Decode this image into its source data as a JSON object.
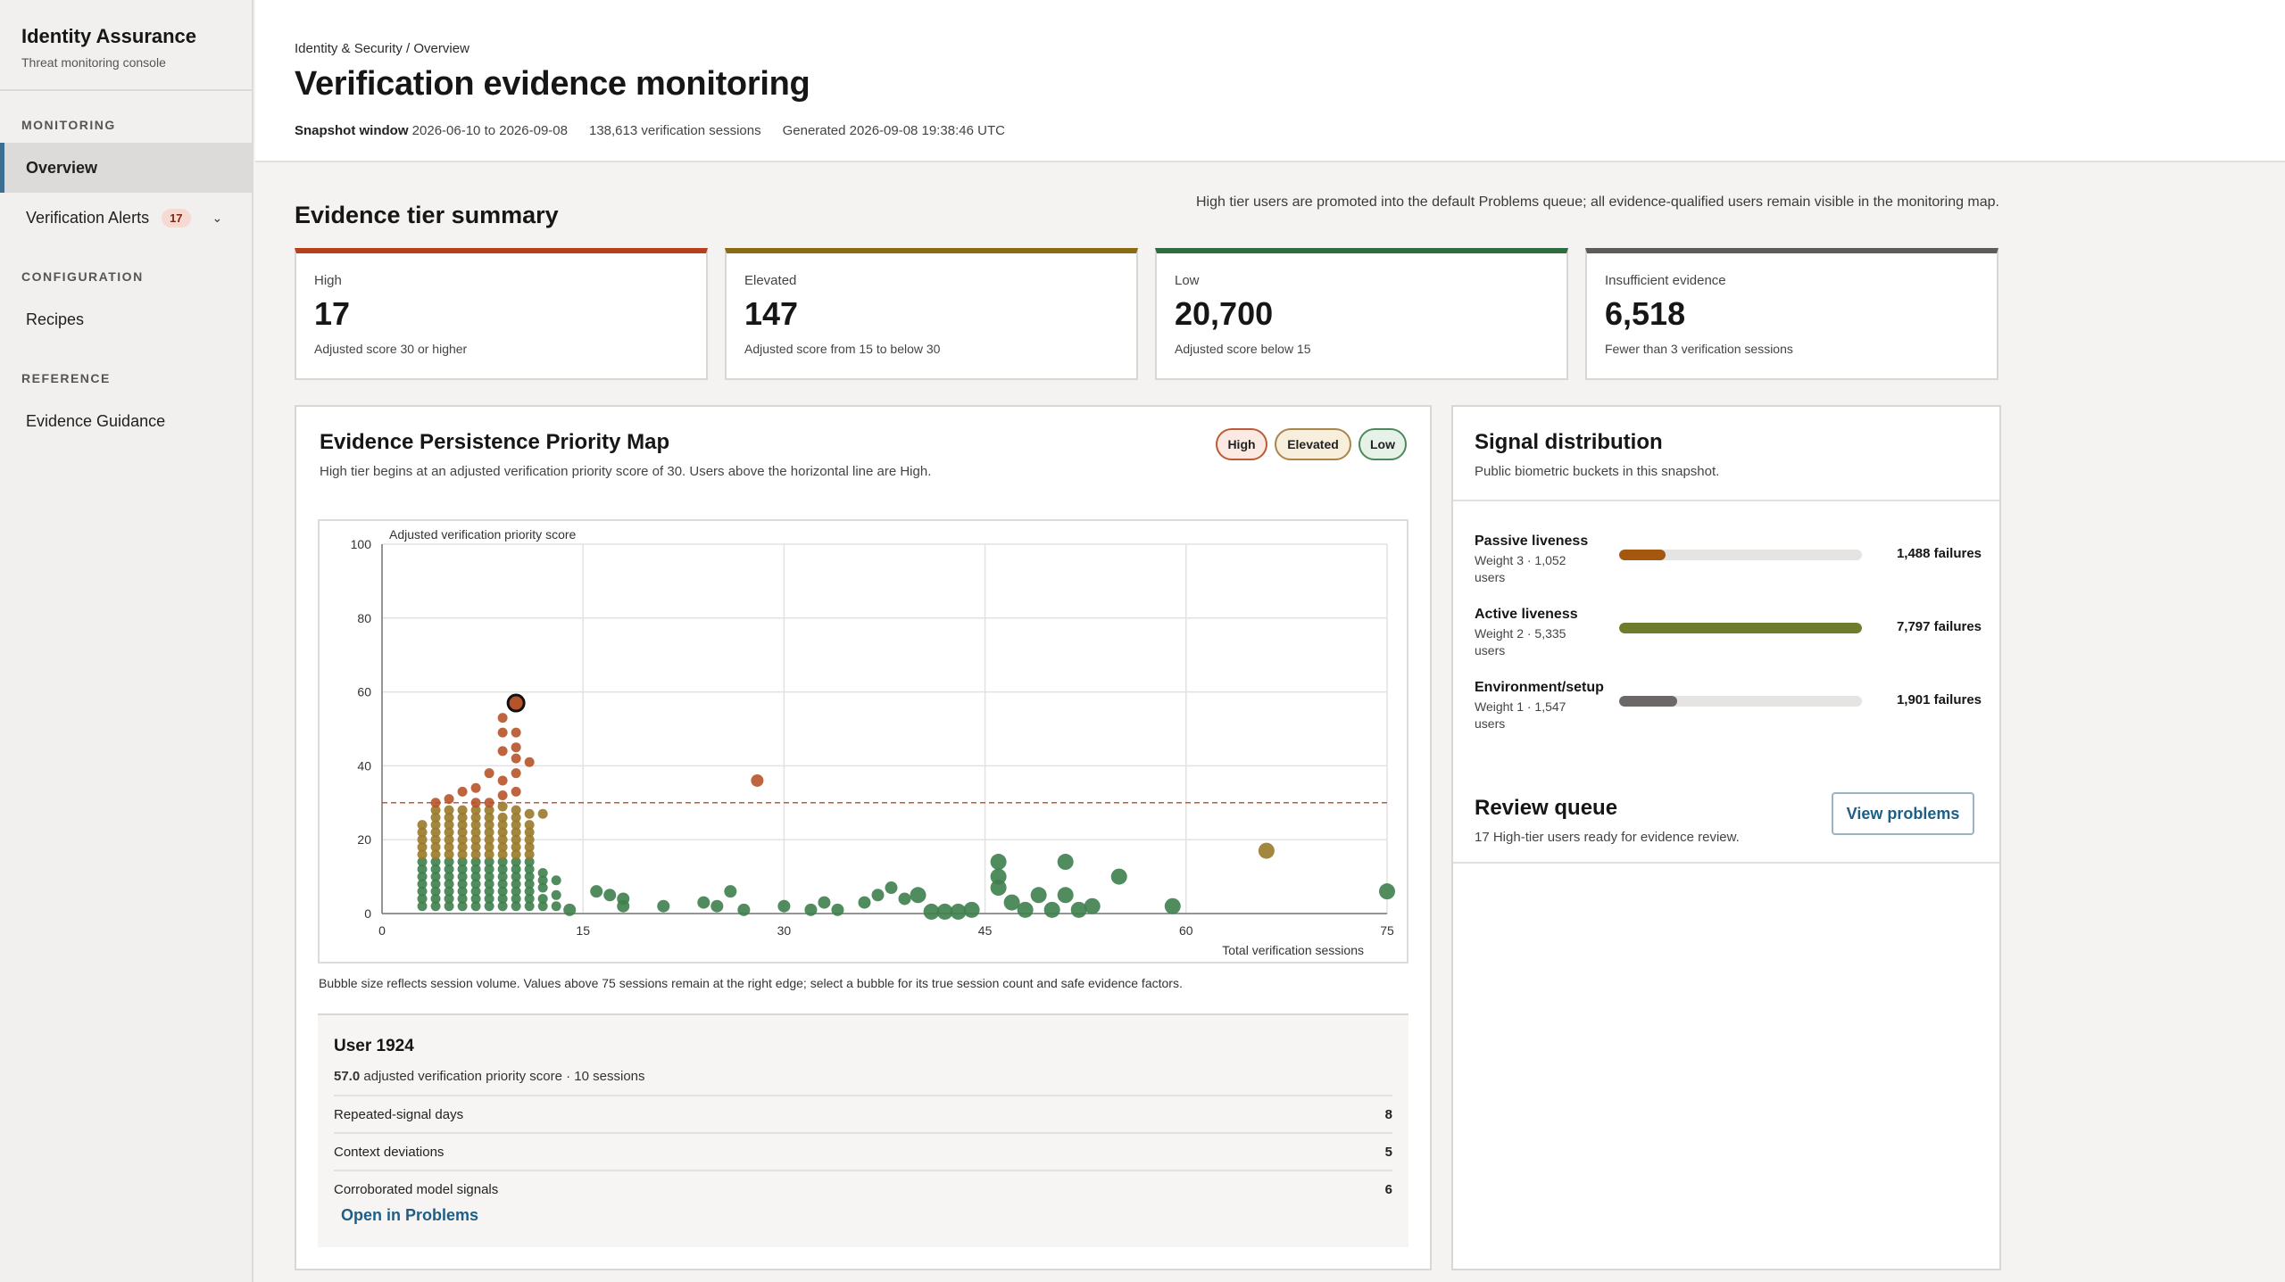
{
  "sidebar": {
    "title": "Identity Assurance",
    "subtitle": "Threat monitoring console",
    "sections": [
      {
        "heading": "MONITORING",
        "items": [
          {
            "label": "Overview"
          },
          {
            "label": "Verification Alerts",
            "badge": "17"
          }
        ]
      },
      {
        "heading": "CONFIGURATION",
        "items": [
          {
            "label": "Recipes"
          }
        ]
      },
      {
        "heading": "REFERENCE",
        "items": [
          {
            "label": "Evidence Guidance"
          }
        ]
      }
    ]
  },
  "header": {
    "breadcrumb": "Identity & Security / Overview",
    "title": "Verification evidence monitoring",
    "snapshot_label": "Snapshot window",
    "snapshot_range": "2026-06-10 to 2026-09-08",
    "sessions": "138,613 verification sessions",
    "generated": "Generated 2026-09-08 19:38:46 UTC"
  },
  "summary": {
    "title": "Evidence tier summary",
    "note": "High tier users are promoted into the default Problems queue; all evidence-qualified users remain visible in the monitoring map.",
    "tiers": [
      {
        "label": "High",
        "value": "17",
        "desc": "Adjusted score 30 or higher",
        "color": "#b83f1c"
      },
      {
        "label": "Elevated",
        "value": "147",
        "desc": "Adjusted score from 15 to below 30",
        "color": "#8a6a12"
      },
      {
        "label": "Low",
        "value": "20,700",
        "desc": "Adjusted score below 15",
        "color": "#2e6b3e"
      },
      {
        "label": "Insufficient evidence",
        "value": "6,518",
        "desc": "Fewer than 3 verification sessions",
        "color": "#5f5b58"
      }
    ]
  },
  "map": {
    "title": "Evidence Persistence Priority Map",
    "subtitle": "High tier begins at an adjusted verification priority score of 30. Users above the horizontal line are High.",
    "legend": [
      {
        "label": "High",
        "bg": "#fbe9e2",
        "border": "#c05a35"
      },
      {
        "label": "Elevated",
        "bg": "#f7efdc",
        "border": "#a8864a"
      },
      {
        "label": "Low",
        "bg": "#e6f1e8",
        "border": "#4c8a5c"
      }
    ],
    "caption": "Bubble size reflects session volume. Values above 75 sessions remain at the right edge; select a bubble for its true session count and safe evidence factors."
  },
  "chart_data": {
    "type": "scatter",
    "title": "",
    "xlabel": "Total verification sessions",
    "ylabel": "Adjusted verification priority score",
    "xlim": [
      0,
      75
    ],
    "ylim": [
      0,
      100
    ],
    "x_ticks": [
      "0",
      "15",
      "30",
      "45",
      "60",
      "75"
    ],
    "y_ticks": [
      "0",
      "20",
      "40",
      "60",
      "80",
      "100"
    ],
    "threshold": 30,
    "grid": true,
    "colors": {
      "high": "#b7532a",
      "elevated": "#9a7a2a",
      "low": "#3e7f4e"
    },
    "selected": {
      "x": 10,
      "y": 57
    },
    "points": [
      [
        3,
        2
      ],
      [
        3,
        4
      ],
      [
        3,
        6
      ],
      [
        3,
        8
      ],
      [
        3,
        10
      ],
      [
        3,
        12
      ],
      [
        3,
        14
      ],
      [
        3,
        16
      ],
      [
        3,
        18
      ],
      [
        3,
        20
      ],
      [
        3,
        22
      ],
      [
        3,
        24
      ],
      [
        4,
        2
      ],
      [
        4,
        4
      ],
      [
        4,
        6
      ],
      [
        4,
        8
      ],
      [
        4,
        10
      ],
      [
        4,
        12
      ],
      [
        4,
        14
      ],
      [
        4,
        16
      ],
      [
        4,
        18
      ],
      [
        4,
        20
      ],
      [
        4,
        22
      ],
      [
        4,
        24
      ],
      [
        4,
        26
      ],
      [
        4,
        28
      ],
      [
        4,
        30
      ],
      [
        5,
        2
      ],
      [
        5,
        4
      ],
      [
        5,
        6
      ],
      [
        5,
        8
      ],
      [
        5,
        10
      ],
      [
        5,
        12
      ],
      [
        5,
        14
      ],
      [
        5,
        16
      ],
      [
        5,
        18
      ],
      [
        5,
        20
      ],
      [
        5,
        22
      ],
      [
        5,
        24
      ],
      [
        5,
        26
      ],
      [
        5,
        28
      ],
      [
        5,
        31
      ],
      [
        6,
        2
      ],
      [
        6,
        4
      ],
      [
        6,
        6
      ],
      [
        6,
        8
      ],
      [
        6,
        10
      ],
      [
        6,
        12
      ],
      [
        6,
        14
      ],
      [
        6,
        16
      ],
      [
        6,
        18
      ],
      [
        6,
        20
      ],
      [
        6,
        22
      ],
      [
        6,
        24
      ],
      [
        6,
        26
      ],
      [
        6,
        28
      ],
      [
        6,
        33
      ],
      [
        7,
        2
      ],
      [
        7,
        4
      ],
      [
        7,
        6
      ],
      [
        7,
        8
      ],
      [
        7,
        10
      ],
      [
        7,
        12
      ],
      [
        7,
        14
      ],
      [
        7,
        16
      ],
      [
        7,
        18
      ],
      [
        7,
        20
      ],
      [
        7,
        22
      ],
      [
        7,
        24
      ],
      [
        7,
        26
      ],
      [
        7,
        28
      ],
      [
        7,
        30
      ],
      [
        7,
        34
      ],
      [
        8,
        2
      ],
      [
        8,
        4
      ],
      [
        8,
        6
      ],
      [
        8,
        8
      ],
      [
        8,
        10
      ],
      [
        8,
        12
      ],
      [
        8,
        14
      ],
      [
        8,
        16
      ],
      [
        8,
        18
      ],
      [
        8,
        20
      ],
      [
        8,
        22
      ],
      [
        8,
        24
      ],
      [
        8,
        26
      ],
      [
        8,
        28
      ],
      [
        8,
        30
      ],
      [
        8,
        38
      ],
      [
        9,
        2
      ],
      [
        9,
        4
      ],
      [
        9,
        6
      ],
      [
        9,
        8
      ],
      [
        9,
        10
      ],
      [
        9,
        12
      ],
      [
        9,
        14
      ],
      [
        9,
        16
      ],
      [
        9,
        18
      ],
      [
        9,
        20
      ],
      [
        9,
        22
      ],
      [
        9,
        24
      ],
      [
        9,
        26
      ],
      [
        9,
        29
      ],
      [
        9,
        32
      ],
      [
        9,
        36
      ],
      [
        9,
        44
      ],
      [
        9,
        49
      ],
      [
        9,
        53
      ],
      [
        10,
        2
      ],
      [
        10,
        4
      ],
      [
        10,
        6
      ],
      [
        10,
        8
      ],
      [
        10,
        10
      ],
      [
        10,
        12
      ],
      [
        10,
        14
      ],
      [
        10,
        16
      ],
      [
        10,
        18
      ],
      [
        10,
        20
      ],
      [
        10,
        22
      ],
      [
        10,
        24
      ],
      [
        10,
        26
      ],
      [
        10,
        28
      ],
      [
        10,
        33
      ],
      [
        10,
        38
      ],
      [
        10,
        42
      ],
      [
        10,
        45
      ],
      [
        10,
        49
      ],
      [
        11,
        2
      ],
      [
        11,
        4
      ],
      [
        11,
        6
      ],
      [
        11,
        8
      ],
      [
        11,
        10
      ],
      [
        11,
        12
      ],
      [
        11,
        14
      ],
      [
        11,
        16
      ],
      [
        11,
        18
      ],
      [
        11,
        20
      ],
      [
        11,
        22
      ],
      [
        11,
        24
      ],
      [
        11,
        27
      ],
      [
        11,
        41
      ],
      [
        12,
        2
      ],
      [
        12,
        4
      ],
      [
        12,
        7
      ],
      [
        12,
        9
      ],
      [
        12,
        11
      ],
      [
        12,
        27
      ],
      [
        13,
        2
      ],
      [
        13,
        5
      ],
      [
        13,
        9
      ],
      [
        14,
        1
      ],
      [
        16,
        6
      ],
      [
        17,
        5
      ],
      [
        18,
        2
      ],
      [
        18,
        4
      ],
      [
        21,
        2
      ],
      [
        24,
        3
      ],
      [
        25,
        2
      ],
      [
        26,
        6
      ],
      [
        27,
        1
      ],
      [
        28,
        36
      ],
      [
        30,
        2
      ],
      [
        32,
        1
      ],
      [
        33,
        3
      ],
      [
        34,
        1
      ],
      [
        36,
        3
      ],
      [
        37,
        5
      ],
      [
        38,
        7
      ],
      [
        39,
        4
      ],
      [
        40,
        5
      ],
      [
        41,
        0.5
      ],
      [
        42,
        0.5
      ],
      [
        43,
        0.5
      ],
      [
        44,
        1
      ],
      [
        46,
        7
      ],
      [
        46,
        10
      ],
      [
        46,
        14
      ],
      [
        47,
        3
      ],
      [
        48,
        1
      ],
      [
        49,
        5
      ],
      [
        50,
        1
      ],
      [
        51,
        5
      ],
      [
        51,
        14
      ],
      [
        52,
        1
      ],
      [
        53,
        2
      ],
      [
        55,
        10
      ],
      [
        59,
        2
      ],
      [
        66,
        17
      ],
      [
        75,
        6
      ]
    ]
  },
  "detail": {
    "user": "User 1924",
    "score": "57.0",
    "score_suffix": "adjusted verification priority score · 10 sessions",
    "rows": [
      {
        "label": "Repeated-signal days",
        "value": "8"
      },
      {
        "label": "Context deviations",
        "value": "5"
      },
      {
        "label": "Corroborated model signals",
        "value": "6"
      }
    ],
    "link": "Open in Problems"
  },
  "signals": {
    "title": "Signal distribution",
    "subtitle": "Public biometric buckets in this snapshot.",
    "items": [
      {
        "name": "Passive liveness",
        "meta": "Weight 3 · 1,052 users",
        "count": "1,488 failures",
        "fraction": 0.19,
        "color": "#a4570f"
      },
      {
        "name": "Active liveness",
        "meta": "Weight 2 · 5,335 users",
        "count": "7,797 failures",
        "fraction": 1.0,
        "color": "#6e7d2c"
      },
      {
        "name": "Environment/setup",
        "meta": "Weight 1 · 1,547 users",
        "count": "1,901 failures",
        "fraction": 0.24,
        "color": "#6b6867"
      }
    ]
  },
  "review": {
    "title": "Review queue",
    "subtitle": "17 High-tier users ready for evidence review.",
    "button": "View problems"
  }
}
